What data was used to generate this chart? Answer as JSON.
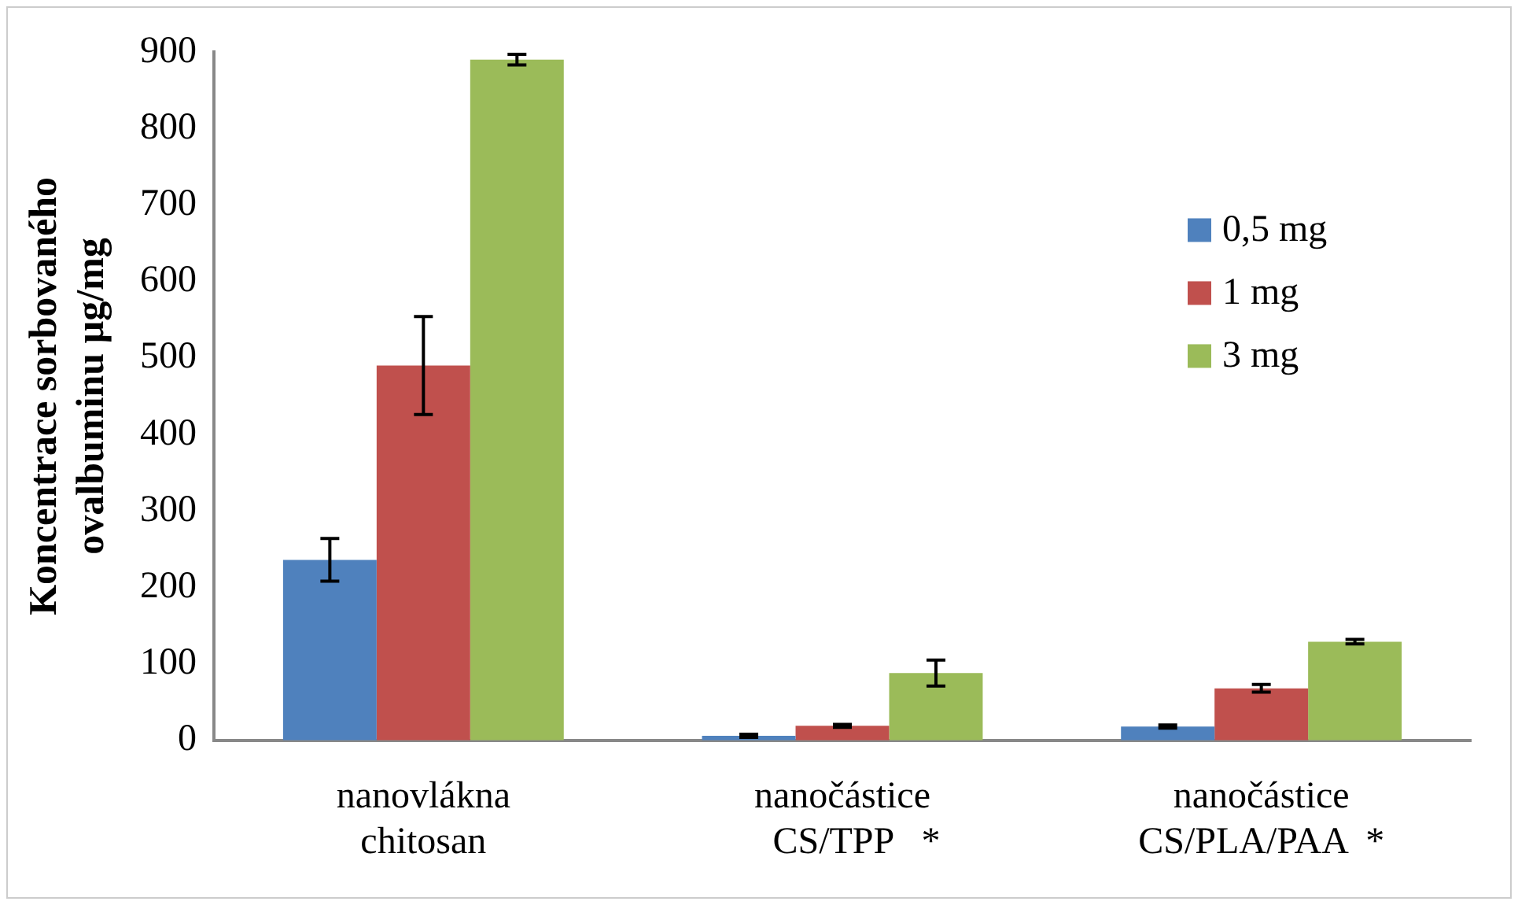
{
  "chart_data": {
    "type": "bar",
    "ylabel": "Koncentrace sorbovaného\novalbuminu µg/mg",
    "categories": [
      "nanovlákna\nchitosan",
      "nanočástice\n   CS/TPP   *",
      "nanočástice\nCS/PLA/PAA  *"
    ],
    "series": [
      {
        "name": "0,5 mg",
        "color": "#4f81bd",
        "values": [
          236,
          6,
          18
        ],
        "errors": [
          28,
          2,
          2
        ]
      },
      {
        "name": "1 mg",
        "color": "#c0504d",
        "values": [
          490,
          19,
          68
        ],
        "errors": [
          64,
          2,
          5
        ]
      },
      {
        "name": "3 mg",
        "color": "#9bbb59",
        "values": [
          890,
          88,
          129
        ],
        "errors": [
          7,
          17,
          3
        ]
      }
    ],
    "ylim": [
      0,
      900
    ],
    "yticks": [
      0,
      100,
      200,
      300,
      400,
      500,
      600,
      700,
      800,
      900
    ],
    "grid": false,
    "legend": "top right"
  }
}
